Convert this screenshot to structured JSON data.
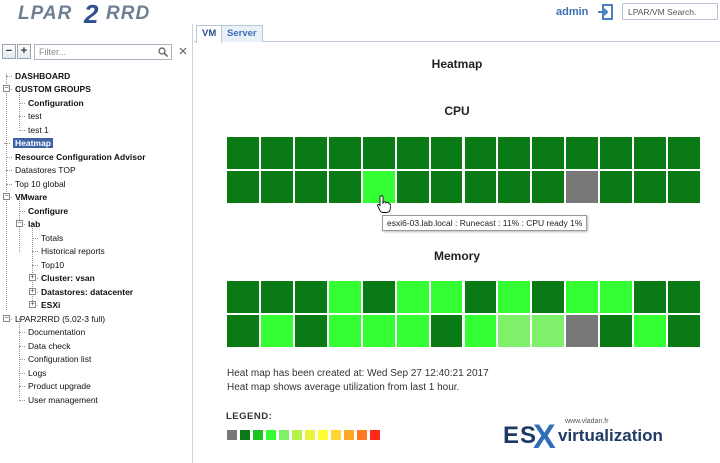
{
  "header": {
    "logo_left": "LPAR",
    "logo_mid": "2",
    "logo_right": "RRD",
    "user": "admin",
    "search_placeholder": "LPAR/VM Search."
  },
  "sidebar": {
    "filter_placeholder": "Filter...",
    "collapse_label": "−",
    "expand_label": "+",
    "items": [
      {
        "label": "DASHBOARD",
        "bold": true
      },
      {
        "label": "CUSTOM GROUPS",
        "bold": true
      },
      {
        "label": "Configuration",
        "bold": true
      },
      {
        "label": "test",
        "bold": false
      },
      {
        "label": "test 1",
        "bold": false
      },
      {
        "label": "Heatmap",
        "bold": true,
        "selected": true
      },
      {
        "label": "Resource Configuration Advisor",
        "bold": true
      },
      {
        "label": "Datastores TOP",
        "bold": false
      },
      {
        "label": "Top 10 global",
        "bold": false
      },
      {
        "label": "VMware",
        "bold": true
      },
      {
        "label": "Configure",
        "bold": true
      },
      {
        "label": "lab",
        "bold": true
      },
      {
        "label": "Totals",
        "bold": false
      },
      {
        "label": "Historical reports",
        "bold": false
      },
      {
        "label": "Top10",
        "bold": false
      },
      {
        "label": "Cluster: vsan",
        "bold": true
      },
      {
        "label": "Datastores: datacenter",
        "bold": true
      },
      {
        "label": "ESXi",
        "bold": true
      },
      {
        "label": "LPAR2RRD (5.02-3 full)",
        "bold": false
      },
      {
        "label": "Documentation",
        "bold": false
      },
      {
        "label": "Data check",
        "bold": false
      },
      {
        "label": "Configuration list",
        "bold": false
      },
      {
        "label": "Logs",
        "bold": false
      },
      {
        "label": "Product upgrade",
        "bold": false
      },
      {
        "label": "User management",
        "bold": false
      }
    ]
  },
  "tabs": [
    {
      "label": "VM",
      "active": true
    },
    {
      "label": "Server",
      "active": false
    }
  ],
  "main": {
    "title": "Heatmap",
    "cpu_title": "CPU",
    "memory_title": "Memory",
    "tooltip": "esxi6-03.lab.local : Runecast : 11% : CPU ready 1%",
    "note_created": "Heat map has been created at: Wed Sep 27 12:40:21 2017",
    "note_average": "Heat map shows average utilization from last 1 hour.",
    "legend_title": "LEGEND:"
  },
  "colors": {
    "dark": "#0a7a14",
    "medium": "#1ec21e",
    "bright": "#33ff33",
    "light": "#7ef06a",
    "gray": "#787878",
    "legend": [
      "#787878",
      "#0a7a14",
      "#1ec21e",
      "#33ff33",
      "#7ef06a",
      "#b6f24a",
      "#e8f23a",
      "#ffff33",
      "#ffd633",
      "#ffa826",
      "#ff7a1e",
      "#ff2a1a"
    ]
  },
  "heatmap": {
    "cpu": [
      [
        "dark",
        "dark",
        "dark",
        "dark",
        "dark",
        "dark",
        "dark",
        "dark",
        "dark",
        "dark",
        "dark",
        "dark",
        "dark",
        "dark"
      ],
      [
        "dark",
        "dark",
        "dark",
        "dark",
        "bright",
        "dark",
        "dark",
        "dark",
        "dark",
        "dark",
        "gray",
        "dark",
        "dark",
        "dark"
      ]
    ],
    "memory": [
      [
        "dark",
        "dark",
        "dark",
        "bright",
        "dark",
        "bright",
        "bright",
        "dark",
        "bright",
        "dark",
        "bright",
        "bright",
        "dark",
        "dark"
      ],
      [
        "dark",
        "bright",
        "dark",
        "bright",
        "bright",
        "bright",
        "dark",
        "bright",
        "light",
        "light",
        "gray",
        "dark",
        "bright",
        "dark"
      ]
    ]
  },
  "watermark": {
    "url": "www.vladan.fr",
    "es": "ES",
    "x": "X",
    "text": "virtualization"
  }
}
